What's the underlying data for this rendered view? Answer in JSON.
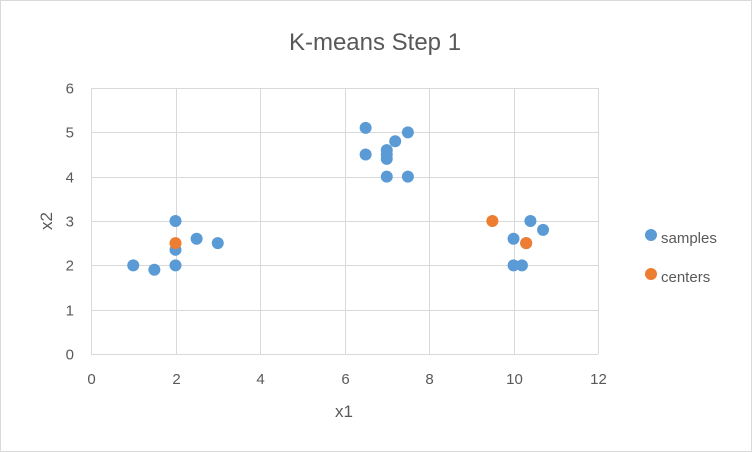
{
  "chart_data": {
    "type": "scatter",
    "title": "K-means Step 1",
    "xlabel": "x1",
    "ylabel": "x2",
    "xlim": [
      0,
      12
    ],
    "ylim": [
      0,
      6
    ],
    "xticks": [
      0,
      2,
      4,
      6,
      8,
      10,
      12
    ],
    "yticks": [
      0,
      1,
      2,
      3,
      4,
      5,
      6
    ],
    "grid": true,
    "legend_position": "right",
    "series": [
      {
        "name": "samples",
        "color": "#5B9BD5",
        "points": [
          [
            1,
            2
          ],
          [
            1.5,
            1.9
          ],
          [
            2,
            2
          ],
          [
            2,
            2.35
          ],
          [
            2,
            3
          ],
          [
            2.5,
            2.6
          ],
          [
            3,
            2.5
          ],
          [
            6.5,
            5.1
          ],
          [
            6.5,
            4.5
          ],
          [
            7,
            4.6
          ],
          [
            7,
            4.5
          ],
          [
            7,
            4.4
          ],
          [
            7.2,
            4.8
          ],
          [
            7.5,
            5
          ],
          [
            7,
            4
          ],
          [
            7.5,
            4
          ],
          [
            10,
            2.6
          ],
          [
            10.4,
            3
          ],
          [
            10.7,
            2.8
          ],
          [
            10,
            2
          ],
          [
            10.2,
            2
          ],
          [
            10.3,
            2.5
          ]
        ]
      },
      {
        "name": "centers",
        "color": "#ED7D31",
        "points": [
          [
            2,
            2.5
          ],
          [
            9.5,
            3
          ],
          [
            10.3,
            2.5
          ]
        ]
      }
    ]
  }
}
